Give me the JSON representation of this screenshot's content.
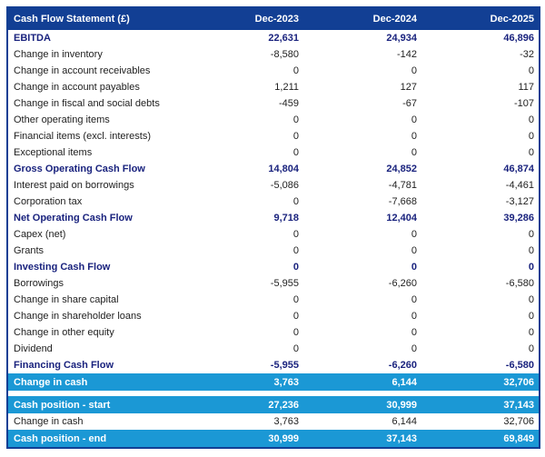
{
  "table": {
    "title": "Cash Flow Statement (£)",
    "columns": [
      "Dec-2023",
      "Dec-2024",
      "Dec-2025"
    ],
    "rows": [
      {
        "label": "EBITDA",
        "values": [
          "22,631",
          "24,934",
          "46,896"
        ],
        "style": "subtotal"
      },
      {
        "label": "Change in inventory",
        "values": [
          "-8,580",
          "-142",
          "-32"
        ],
        "style": "normal"
      },
      {
        "label": "Change in account receivables",
        "values": [
          "0",
          "0",
          "0"
        ],
        "style": "normal"
      },
      {
        "label": "Change in account payables",
        "values": [
          "1,211",
          "127",
          "117"
        ],
        "style": "normal"
      },
      {
        "label": "Change in fiscal and social debts",
        "values": [
          "-459",
          "-67",
          "-107"
        ],
        "style": "normal"
      },
      {
        "label": "Other operating items",
        "values": [
          "0",
          "0",
          "0"
        ],
        "style": "normal"
      },
      {
        "label": "Financial items (excl. interests)",
        "values": [
          "0",
          "0",
          "0"
        ],
        "style": "normal"
      },
      {
        "label": "Exceptional items",
        "values": [
          "0",
          "0",
          "0"
        ],
        "style": "normal"
      },
      {
        "label": "Gross Operating Cash Flow",
        "values": [
          "14,804",
          "24,852",
          "46,874"
        ],
        "style": "subtotal"
      },
      {
        "label": "Interest paid on borrowings",
        "values": [
          "-5,086",
          "-4,781",
          "-4,461"
        ],
        "style": "normal"
      },
      {
        "label": "Corporation tax",
        "values": [
          "0",
          "-7,668",
          "-3,127"
        ],
        "style": "normal"
      },
      {
        "label": "Net Operating Cash Flow",
        "values": [
          "9,718",
          "12,404",
          "39,286"
        ],
        "style": "subtotal"
      },
      {
        "label": "Capex (net)",
        "values": [
          "0",
          "0",
          "0"
        ],
        "style": "normal"
      },
      {
        "label": "Grants",
        "values": [
          "0",
          "0",
          "0"
        ],
        "style": "normal"
      },
      {
        "label": "Investing Cash Flow",
        "values": [
          "0",
          "0",
          "0"
        ],
        "style": "subtotal"
      },
      {
        "label": "Borrowings",
        "values": [
          "-5,955",
          "-6,260",
          "-6,580"
        ],
        "style": "normal"
      },
      {
        "label": "Change in share capital",
        "values": [
          "0",
          "0",
          "0"
        ],
        "style": "normal"
      },
      {
        "label": "Change in shareholder loans",
        "values": [
          "0",
          "0",
          "0"
        ],
        "style": "normal"
      },
      {
        "label": "Change in other equity",
        "values": [
          "0",
          "0",
          "0"
        ],
        "style": "normal"
      },
      {
        "label": "Dividend",
        "values": [
          "0",
          "0",
          "0"
        ],
        "style": "normal"
      },
      {
        "label": "Financing Cash Flow",
        "values": [
          "-5,955",
          "-6,260",
          "-6,580"
        ],
        "style": "subtotal"
      },
      {
        "label": "Change in cash",
        "values": [
          "3,763",
          "6,144",
          "32,706"
        ],
        "style": "highlight"
      },
      {
        "style": "spacer"
      },
      {
        "label": "Cash position - start",
        "values": [
          "27,236",
          "30,999",
          "37,143"
        ],
        "style": "highlight"
      },
      {
        "label": "Change in cash",
        "values": [
          "3,763",
          "6,144",
          "32,706"
        ],
        "style": "normal"
      },
      {
        "label": "Cash position - end",
        "values": [
          "30,999",
          "37,143",
          "69,849"
        ],
        "style": "highlight"
      }
    ]
  },
  "colors": {
    "header_bg": "#123f94",
    "header_text": "#ffffff",
    "subtotal_text": "#1a237e",
    "body_text": "#212121",
    "highlight_bg": "#1b98d5",
    "highlight_text": "#ffffff",
    "border": "#123f94",
    "background": "#ffffff"
  }
}
